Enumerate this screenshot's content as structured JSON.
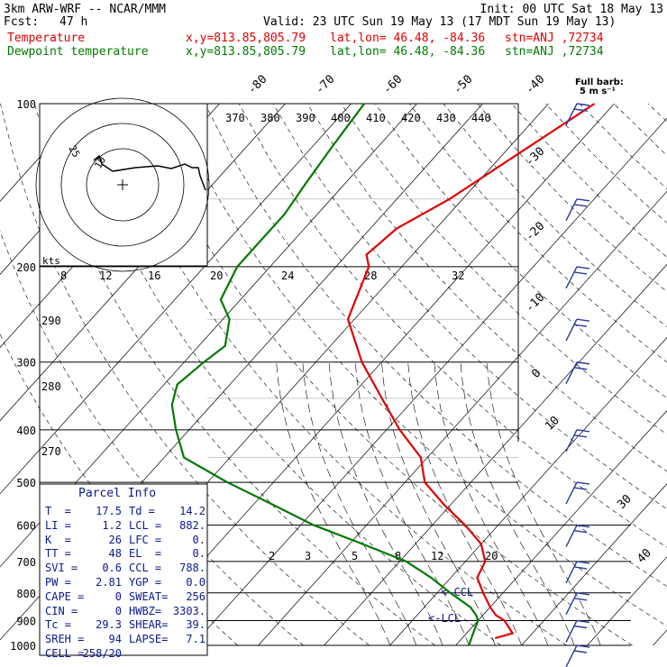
{
  "header": {
    "title": "3km ARW-WRF -- NCAR/MMM",
    "init": "Init: 00 UTC Sat 18 May 13",
    "fcst_label": "Fcst:",
    "fcst_value": "47 h",
    "valid": "Valid: 23 UTC Sun 19 May 13 (17 MDT Sun 19 May 13)",
    "temperature": {
      "label": "Temperature",
      "xy": "x,y=813.85,805.79",
      "latlon": "lat,lon= 46.48, -84.36",
      "stn": "stn=ANJ ,72734",
      "color": "#e00000"
    },
    "dewpoint": {
      "label": "Dewpoint temperature",
      "xy": "x,y=813.85,805.79",
      "latlon": "lat,lon= 46.48, -84.36",
      "stn": "stn=ANJ ,72734",
      "color": "#007a00"
    }
  },
  "barb_key": {
    "title": "Full barb:",
    "value": "5 m s⁻¹"
  },
  "hodograph": {
    "units": "kts",
    "ring_labels": [
      "25",
      "10"
    ]
  },
  "parcel_info": {
    "title": "Parcel Info",
    "rows": [
      [
        "T  =",
        "17.5",
        "Td =",
        "14.2"
      ],
      [
        "LI =",
        "1.2",
        "LCL =",
        "882."
      ],
      [
        "K  =",
        "26",
        "LFC =",
        "0."
      ],
      [
        "TT =",
        "48",
        "EL  =",
        "0."
      ],
      [
        "SVI =",
        "0.6",
        "CCL =",
        "788."
      ],
      [
        "PW =",
        "2.81",
        "YGP =",
        "0.0"
      ],
      [
        "CAPE =",
        "0",
        "SWEAT=",
        "256"
      ],
      [
        "CIN =",
        "0",
        "HWBZ=",
        "3303."
      ],
      [
        "Tc =",
        "29.3",
        "SHEAR=",
        "39."
      ],
      [
        "SREH =",
        "94",
        "LAPSE=",
        "7.1"
      ],
      [
        "CELL =",
        "258/20",
        "",
        ""
      ]
    ]
  },
  "chart_data": {
    "type": "line",
    "title": "",
    "y_axis": {
      "scale": "log",
      "ticks": [
        100,
        200,
        300,
        400,
        500,
        600,
        700,
        800,
        900,
        1000
      ]
    },
    "isotherm_top_labels": [
      "-80",
      "-70",
      "-60",
      "-50",
      "-40"
    ],
    "isotherm_right_labels": [
      "-30",
      "-20",
      "-10",
      "0",
      "10"
    ],
    "isotherm_lower_right_labels": [
      "30",
      "40"
    ],
    "theta_labels": [
      "370",
      "380",
      "390",
      "400",
      "410",
      "420",
      "430",
      "440"
    ],
    "theta_left_labels": [
      "290",
      "280",
      "270"
    ],
    "mixing_ratio_upper_labels": [
      "8",
      "12",
      "16",
      "20",
      "24",
      "28",
      "32"
    ],
    "mixing_ratio_lower_labels": [
      "2",
      "3",
      "5",
      "8",
      "12",
      "20"
    ],
    "annotations": [
      "<-CCL",
      "<-LCL"
    ],
    "series": [
      {
        "name": "Temperature",
        "color": "#e00000",
        "points": [
          [
            100,
            -43
          ],
          [
            150,
            -52
          ],
          [
            170,
            -56
          ],
          [
            190,
            -57
          ],
          [
            200,
            -55
          ],
          [
            250,
            -51
          ],
          [
            300,
            -43
          ],
          [
            350,
            -35
          ],
          [
            400,
            -28
          ],
          [
            450,
            -21
          ],
          [
            500,
            -17
          ],
          [
            550,
            -11
          ],
          [
            600,
            -5
          ],
          [
            650,
            0
          ],
          [
            700,
            3
          ],
          [
            750,
            4
          ],
          [
            800,
            7
          ],
          [
            850,
            10
          ],
          [
            880,
            12
          ],
          [
            900,
            14
          ],
          [
            950,
            17
          ],
          [
            970,
            15
          ]
        ]
      },
      {
        "name": "Dewpoint temperature",
        "color": "#007a00",
        "points": [
          [
            100,
            -78
          ],
          [
            120,
            -77
          ],
          [
            140,
            -76
          ],
          [
            160,
            -75
          ],
          [
            180,
            -75
          ],
          [
            200,
            -75
          ],
          [
            230,
            -73
          ],
          [
            250,
            -69
          ],
          [
            280,
            -66
          ],
          [
            300,
            -67
          ],
          [
            330,
            -68
          ],
          [
            360,
            -66
          ],
          [
            400,
            -62
          ],
          [
            450,
            -57
          ],
          [
            500,
            -47
          ],
          [
            550,
            -37
          ],
          [
            600,
            -28
          ],
          [
            650,
            -18
          ],
          [
            700,
            -9
          ],
          [
            750,
            -3
          ],
          [
            800,
            2
          ],
          [
            850,
            7
          ],
          [
            880,
            9
          ],
          [
            900,
            10
          ],
          [
            950,
            11
          ],
          [
            1000,
            12
          ]
        ]
      }
    ],
    "wind_barbs": [
      {
        "p": 100,
        "dir": 260,
        "spd_kt": 20
      },
      {
        "p": 150,
        "dir": 260,
        "spd_kt": 20
      },
      {
        "p": 200,
        "dir": 260,
        "spd_kt": 20
      },
      {
        "p": 250,
        "dir": 260,
        "spd_kt": 20
      },
      {
        "p": 300,
        "dir": 260,
        "spd_kt": 20
      },
      {
        "p": 400,
        "dir": 260,
        "spd_kt": 20
      },
      {
        "p": 500,
        "dir": 260,
        "spd_kt": 20
      },
      {
        "p": 600,
        "dir": 260,
        "spd_kt": 20
      },
      {
        "p": 700,
        "dir": 260,
        "spd_kt": 20
      },
      {
        "p": 800,
        "dir": 260,
        "spd_kt": 20
      },
      {
        "p": 900,
        "dir": 260,
        "spd_kt": 20
      },
      {
        "p": 1000,
        "dir": 260,
        "spd_kt": 20
      }
    ]
  }
}
